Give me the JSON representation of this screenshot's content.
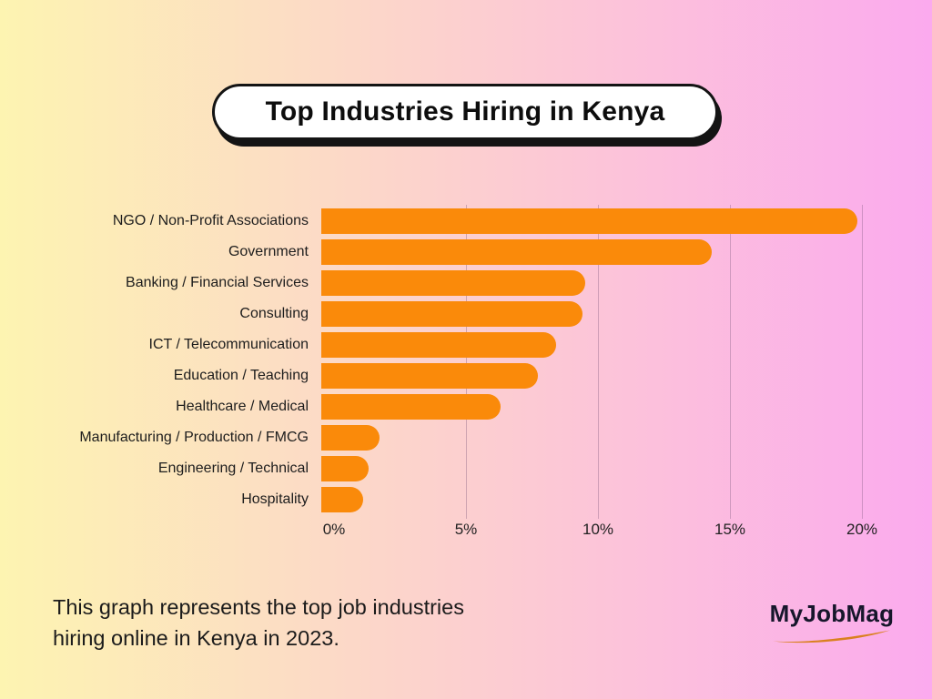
{
  "title_pill": {
    "text": "Top Industries Hiring in Kenya"
  },
  "chart_data": {
    "type": "bar",
    "orientation": "horizontal",
    "title": "Top Industries Hiring in Kenya",
    "categories": [
      "NGO / Non-Profit Associations",
      "Government",
      "Banking / Financial Services",
      "Consulting",
      "ICT / Telecommunication",
      "Education / Teaching",
      "Healthcare / Medical",
      "Manufacturing / Production / FMCG",
      "Engineering / Technical",
      "Hospitality"
    ],
    "values": [
      20.3,
      14.8,
      10.0,
      9.9,
      8.9,
      8.2,
      6.8,
      2.2,
      1.8,
      1.6
    ],
    "unit": "%",
    "xlabel": "",
    "ylabel": "",
    "x_range": [
      0,
      20
    ],
    "x_ticks": [
      "0%",
      "5%",
      "10%",
      "15%",
      "20%"
    ],
    "x_tick_values": [
      0,
      5,
      10,
      15,
      20
    ],
    "grid": "vertical-lines",
    "legend": "none",
    "bar_color": "#fa8a0a"
  },
  "footer": {
    "line1": "This graph represents the top job industries",
    "line2": "hiring online in Kenya in 2023."
  },
  "brand": {
    "name": "MyJobMag"
  },
  "theme": {
    "background_left": "#fdf4b1",
    "background_right": "#fbaaee",
    "bar_color": "#fa8a0a",
    "pill_background": "#ffffff",
    "ink": "#141414",
    "gridline": "rgba(122,86,122,0.35)",
    "swoosh_color": "#d9801e"
  }
}
